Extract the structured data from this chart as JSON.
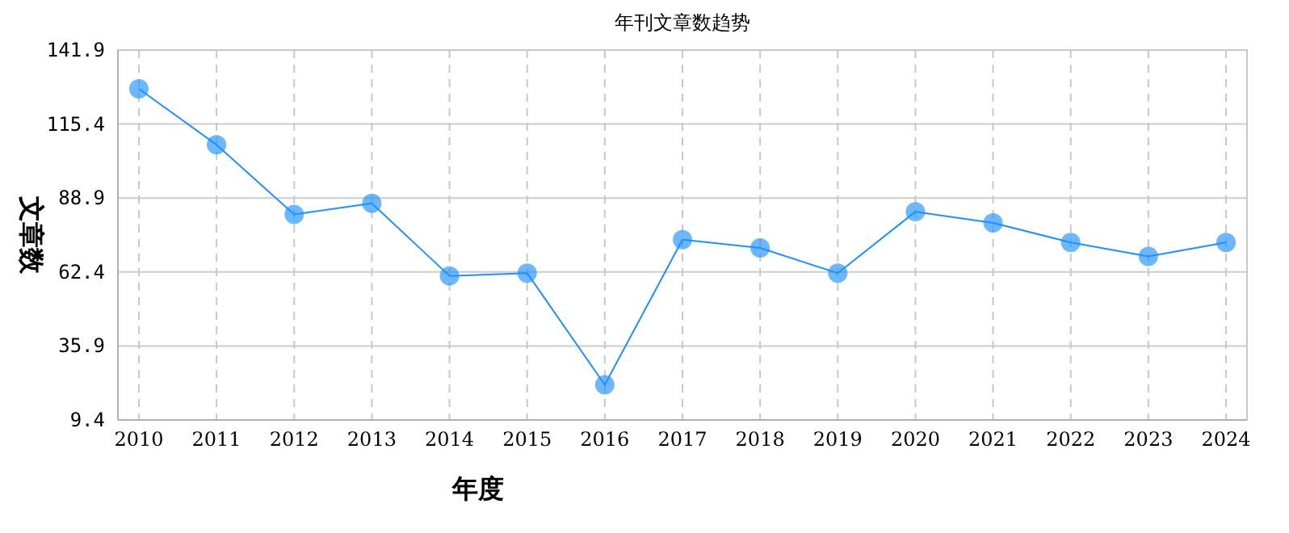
{
  "chart_data": {
    "type": "line",
    "title": "年刊文章数趋势",
    "xlabel": "年度",
    "ylabel": "文章数",
    "categories": [
      "2010",
      "2011",
      "2012",
      "2013",
      "2014",
      "2015",
      "2016",
      "2017",
      "2018",
      "2019",
      "2020",
      "2021",
      "2022",
      "2023",
      "2024"
    ],
    "series": [
      {
        "color": "#1e90ff",
        "values": [
          128,
          108,
          83,
          87,
          61,
          62,
          22,
          74,
          71,
          62,
          84,
          80,
          73,
          68,
          73
        ]
      }
    ],
    "ylim": [
      9.4,
      141.9
    ],
    "yticks": [
      9.4,
      35.9,
      62.4,
      88.9,
      115.4,
      141.9
    ],
    "grid": true,
    "marker": "circle",
    "line_style": "solid"
  }
}
